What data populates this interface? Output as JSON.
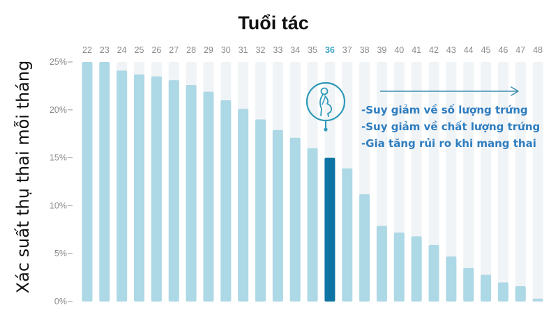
{
  "chart_data": {
    "type": "bar",
    "title": "Tuổi tác",
    "ylabel": "Xác suất thụ thai mỗi tháng",
    "xlabel": "",
    "categories": [
      "22",
      "23",
      "24",
      "25",
      "26",
      "27",
      "28",
      "29",
      "30",
      "31",
      "32",
      "33",
      "34",
      "35",
      "36",
      "37",
      "38",
      "39",
      "40",
      "41",
      "42",
      "43",
      "44",
      "45",
      "46",
      "47",
      "48"
    ],
    "values": [
      25,
      25,
      24.1,
      23.7,
      23.5,
      23.1,
      22.6,
      21.9,
      21.0,
      20.1,
      19.0,
      17.9,
      17.1,
      16.0,
      15.0,
      13.9,
      11.2,
      7.9,
      7.2,
      6.8,
      5.9,
      4.7,
      3.5,
      2.8,
      2.0,
      1.6,
      0.3
    ],
    "highlight_category": "36",
    "yticks": [
      "0%",
      "5%",
      "10%",
      "15%",
      "20%",
      "25%"
    ],
    "ytick_values": [
      0,
      5,
      10,
      15,
      20,
      25
    ],
    "ylim": [
      0,
      25
    ],
    "grid": false,
    "annotations": [
      "-Suy giảm về số lượng trứng",
      "-Suy giảm về chất lượng trứng",
      "-Gia tăng rủi ro khi mang thai"
    ],
    "colors": {
      "bar": "#add8e6",
      "bar_highlight": "#0d74a3",
      "track": "#f1f4f6",
      "highlight_text": "#3aa5c4",
      "annotation_text": "#2e7dbf",
      "arrow": "#3f8fb0",
      "icon": "#2d9ab8"
    },
    "icon": "pregnant-woman-icon"
  }
}
